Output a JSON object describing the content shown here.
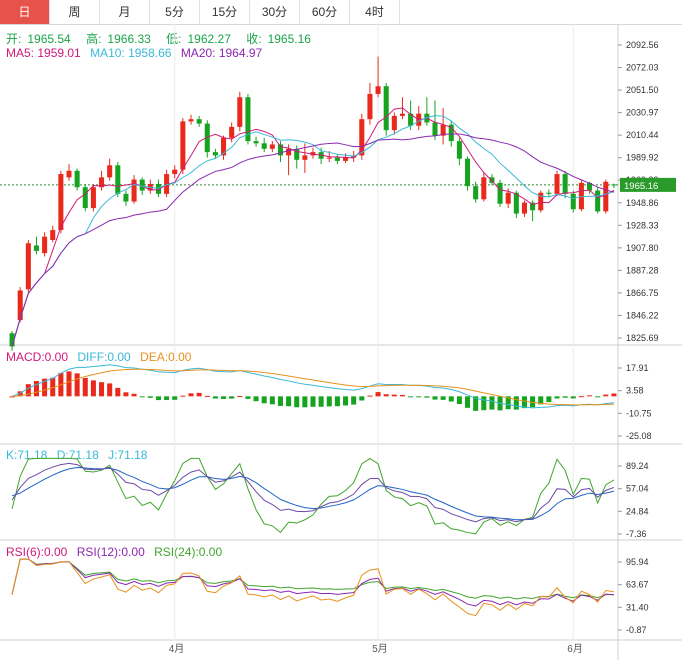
{
  "tabs": [
    {
      "label": "日",
      "active": true
    },
    {
      "label": "周"
    },
    {
      "label": "月"
    },
    {
      "label": "5分"
    },
    {
      "label": "15分"
    },
    {
      "label": "30分"
    },
    {
      "label": "60分"
    },
    {
      "label": "4时"
    }
  ],
  "ohlc_legend": {
    "open_label": "开:",
    "open": "1965.54",
    "high_label": "高:",
    "high": "1966.33",
    "low_label": "低:",
    "low": "1962.27",
    "close_label": "收:",
    "close": "1965.16"
  },
  "ma_legend": {
    "ma5": "MA5: 1959.01",
    "ma10": "MA10: 1958.66",
    "ma20": "MA20: 1964.97"
  },
  "macd_legend": {
    "macd": "MACD:0.00",
    "diff": "DIFF:0.00",
    "dea": "DEA:0.00"
  },
  "kdj_legend": {
    "k": "K:71.18",
    "d": "D:71.18",
    "j": "J:71.18"
  },
  "rsi_legend": {
    "r6": "RSI(6):0.00",
    "r12": "RSI(12):0.00",
    "r24": "RSI(24):0.00"
  },
  "colors": {
    "up": "#e8291c",
    "down": "#16a31f",
    "ma5": "#d0197a",
    "ma10": "#3ab8d8",
    "ma20": "#8c27b0",
    "diff": "#e8911c",
    "dea": "#2a8bd6",
    "active_tab": "#e5534b",
    "k": "#6c4aa6",
    "d": "#1f65c6",
    "j": "#3fa52b"
  },
  "chart_data": [
    {
      "type": "candlestick",
      "price_ticks": [
        "2092.56",
        "2072.03",
        "2051.50",
        "2030.97",
        "2010.44",
        "1989.92",
        "1969.39",
        "1948.86",
        "1928.33",
        "1907.80",
        "1887.28",
        "1866.75",
        "1846.22",
        "1825.69"
      ],
      "current_price": "1965.16",
      "x_labels": [
        "4月",
        "5月",
        "6月"
      ],
      "candles": [
        [
          1830,
          1818,
          1832,
          1814
        ],
        [
          1842,
          1869,
          1872,
          1840
        ],
        [
          1870,
          1912,
          1915,
          1867
        ],
        [
          1910,
          1905,
          1918,
          1902
        ],
        [
          1903,
          1918,
          1922,
          1900
        ],
        [
          1915,
          1924,
          1928,
          1913
        ],
        [
          1924,
          1975,
          1978,
          1921
        ],
        [
          1972,
          1978,
          1984,
          1969
        ],
        [
          1978,
          1963,
          1980,
          1960
        ],
        [
          1963,
          1944,
          1966,
          1941
        ],
        [
          1944,
          1963,
          1966,
          1941
        ],
        [
          1963,
          1972,
          1978,
          1960
        ],
        [
          1972,
          1983,
          1989,
          1969
        ],
        [
          1983,
          1957,
          1986,
          1954
        ],
        [
          1957,
          1950,
          1960,
          1946
        ],
        [
          1950,
          1970,
          1974,
          1948
        ],
        [
          1970,
          1960,
          1972,
          1956
        ],
        [
          1960,
          1966,
          1970,
          1957
        ],
        [
          1966,
          1957,
          1970,
          1954
        ],
        [
          1957,
          1975,
          1979,
          1954
        ],
        [
          1975,
          1979,
          1983,
          1971
        ],
        [
          1979,
          2023,
          2026,
          1975
        ],
        [
          2023,
          2025,
          2029,
          2020
        ],
        [
          2025,
          2021,
          2028,
          2018
        ],
        [
          2021,
          1995,
          2024,
          1990
        ],
        [
          1995,
          1992,
          1998,
          1989
        ],
        [
          1992,
          2008,
          2010,
          1988
        ],
        [
          2008,
          2018,
          2022,
          2004
        ],
        [
          2018,
          2045,
          2050,
          2014
        ],
        [
          2045,
          2005,
          2048,
          2002
        ],
        [
          2005,
          2003,
          2009,
          2000
        ],
        [
          2003,
          1998,
          2008,
          1995
        ],
        [
          1998,
          2002,
          2005,
          1995
        ],
        [
          2002,
          1992,
          2005,
          1986
        ],
        [
          1992,
          1998,
          2002,
          1974
        ],
        [
          1998,
          1988,
          2001,
          1980
        ],
        [
          1988,
          1992,
          2003,
          1976
        ],
        [
          1992,
          1995,
          1999,
          1989
        ],
        [
          1995,
          1989,
          1999,
          1984
        ],
        [
          1989,
          1990,
          1996,
          1986
        ],
        [
          1990,
          1987,
          1993,
          1984
        ],
        [
          1987,
          1990,
          1994,
          1985
        ],
        [
          1990,
          1992,
          1996,
          1986
        ],
        [
          1992,
          2025,
          2030,
          1988
        ],
        [
          2025,
          2048,
          2058,
          2020
        ],
        [
          2048,
          2055,
          2082,
          2045
        ],
        [
          2055,
          2015,
          2058,
          2010
        ],
        [
          2015,
          2028,
          2031,
          2011
        ],
        [
          2028,
          2030,
          2045,
          2025
        ],
        [
          2030,
          2019,
          2042,
          2015
        ],
        [
          2019,
          2030,
          2037,
          2015
        ],
        [
          2030,
          2022,
          2045,
          2019
        ],
        [
          2022,
          2010,
          2042,
          2006
        ],
        [
          2010,
          2020,
          2035,
          2002
        ],
        [
          2020,
          2005,
          2024,
          2000
        ],
        [
          2005,
          1989,
          2008,
          1983
        ],
        [
          1989,
          1964,
          1991,
          1960
        ],
        [
          1964,
          1952,
          1968,
          1949
        ],
        [
          1952,
          1972,
          1976,
          1950
        ],
        [
          1972,
          1967,
          1975,
          1965
        ],
        [
          1967,
          1948,
          1970,
          1945
        ],
        [
          1948,
          1958,
          1962,
          1944
        ],
        [
          1958,
          1939,
          1960,
          1935
        ],
        [
          1939,
          1949,
          1951,
          1936
        ],
        [
          1949,
          1942,
          1951,
          1932
        ],
        [
          1942,
          1958,
          1960,
          1940
        ],
        [
          1958,
          1957,
          1961,
          1954
        ],
        [
          1957,
          1975,
          1978,
          1955
        ],
        [
          1975,
          1957,
          1978,
          1953
        ],
        [
          1957,
          1943,
          1960,
          1940
        ],
        [
          1943,
          1967,
          1970,
          1941
        ],
        [
          1967,
          1960,
          1968,
          1957
        ],
        [
          1960,
          1941,
          1963,
          1939
        ],
        [
          1941,
          1968,
          1970,
          1939
        ],
        [
          1965.54,
          1965.16,
          1966.33,
          1962.27
        ]
      ]
    },
    {
      "type": "macd",
      "ticks": [
        "17.91",
        "3.58",
        "-10.75",
        "-25.08"
      ]
    },
    {
      "type": "kdj",
      "ticks": [
        "89.24",
        "57.04",
        "24.84",
        "-7.36"
      ]
    },
    {
      "type": "rsi",
      "ticks": [
        "95.94",
        "63.67",
        "31.40",
        "-0.87"
      ]
    }
  ]
}
